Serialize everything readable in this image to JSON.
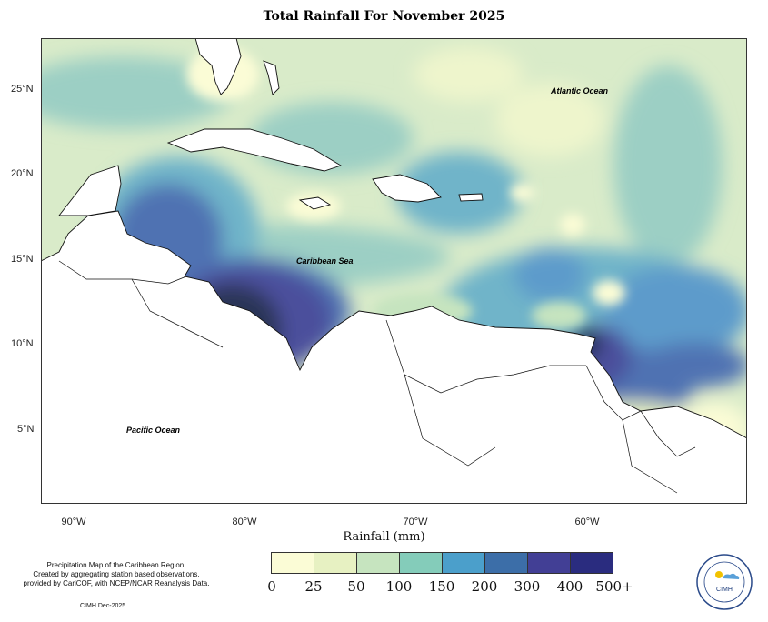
{
  "title": "Total Rainfall For November 2025",
  "map": {
    "ocean_labels": {
      "atlantic": "Atlantic Ocean",
      "caribbean": "Caribbean Sea",
      "pacific": "Pacific Ocean"
    },
    "lat_ticks": [
      "25°N",
      "20°N",
      "15°N",
      "10°N",
      "5°N"
    ],
    "lon_ticks": [
      "90°W",
      "80°W",
      "70°W",
      "60°W"
    ]
  },
  "legend": {
    "title": "Rainfall (mm)",
    "ticks": [
      "0",
      "25",
      "50",
      "100",
      "150",
      "200",
      "300",
      "400",
      "500+"
    ],
    "colors": [
      "#fbfcd6",
      "#e7f1c2",
      "#c6e4bf",
      "#84ccba",
      "#4b9fcb",
      "#3c6ea8",
      "#423f95",
      "#2a2c7f",
      "#12245a"
    ]
  },
  "footnote": {
    "line1": "Precipitation Map of the Caribbean Region.",
    "line2": "Created by aggregating station based observations,",
    "line3": "provided by CariCOF, with NCEP/NCAR Reanalysis Data."
  },
  "credit": "CIMH Dec-2025",
  "logo": {
    "text": "CIMH"
  }
}
